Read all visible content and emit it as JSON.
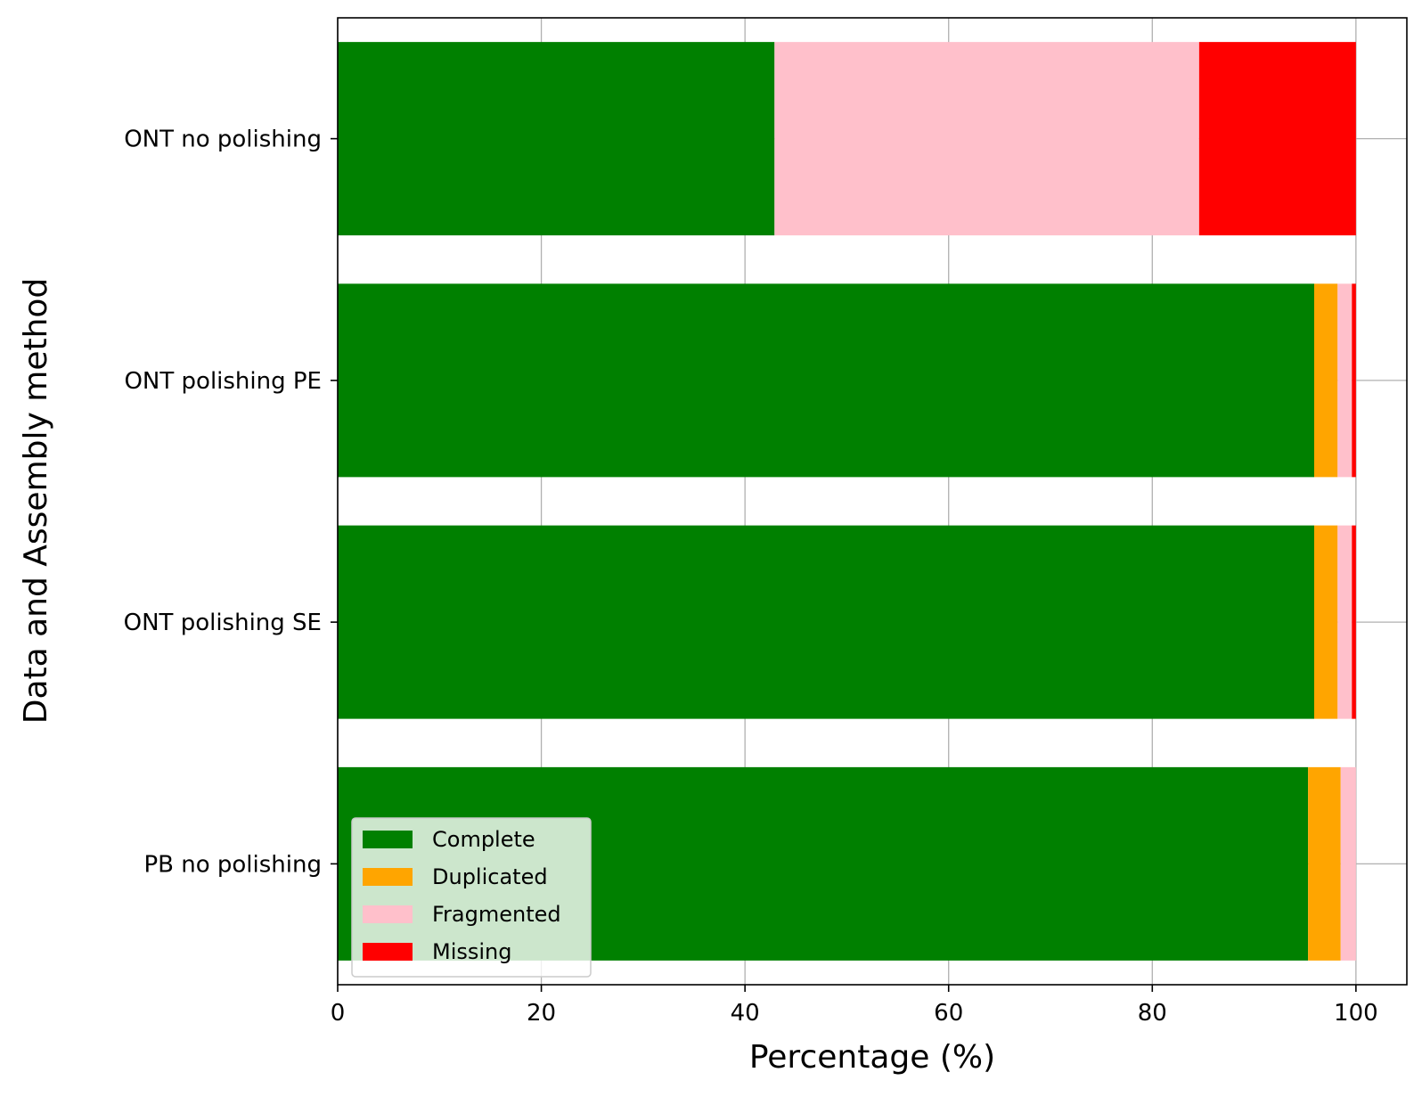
{
  "chart_data": {
    "type": "bar",
    "orientation": "horizontal",
    "stacked": true,
    "title": "",
    "xlabel": "Percentage (%)",
    "ylabel": "Data and Assembly method",
    "xlim": [
      0,
      105
    ],
    "x_ticks": [
      0,
      20,
      40,
      60,
      80,
      100
    ],
    "grid": true,
    "legend_position": "lower-left",
    "categories": [
      "ONT no polishing",
      "ONT polishing PE",
      "ONT polishing SE",
      "PB no polishing"
    ],
    "series": [
      {
        "name": "Complete",
        "color": "#008000",
        "values": [
          42.9,
          95.9,
          95.9,
          95.3
        ]
      },
      {
        "name": "Duplicated",
        "color": "#ffa500",
        "values": [
          0.0,
          2.3,
          2.3,
          3.2
        ]
      },
      {
        "name": "Fragmented",
        "color": "#ffc0cb",
        "values": [
          41.7,
          1.4,
          1.4,
          1.5
        ]
      },
      {
        "name": "Missing",
        "color": "#ff0000",
        "values": [
          15.4,
          0.4,
          0.4,
          0.0
        ]
      }
    ]
  }
}
